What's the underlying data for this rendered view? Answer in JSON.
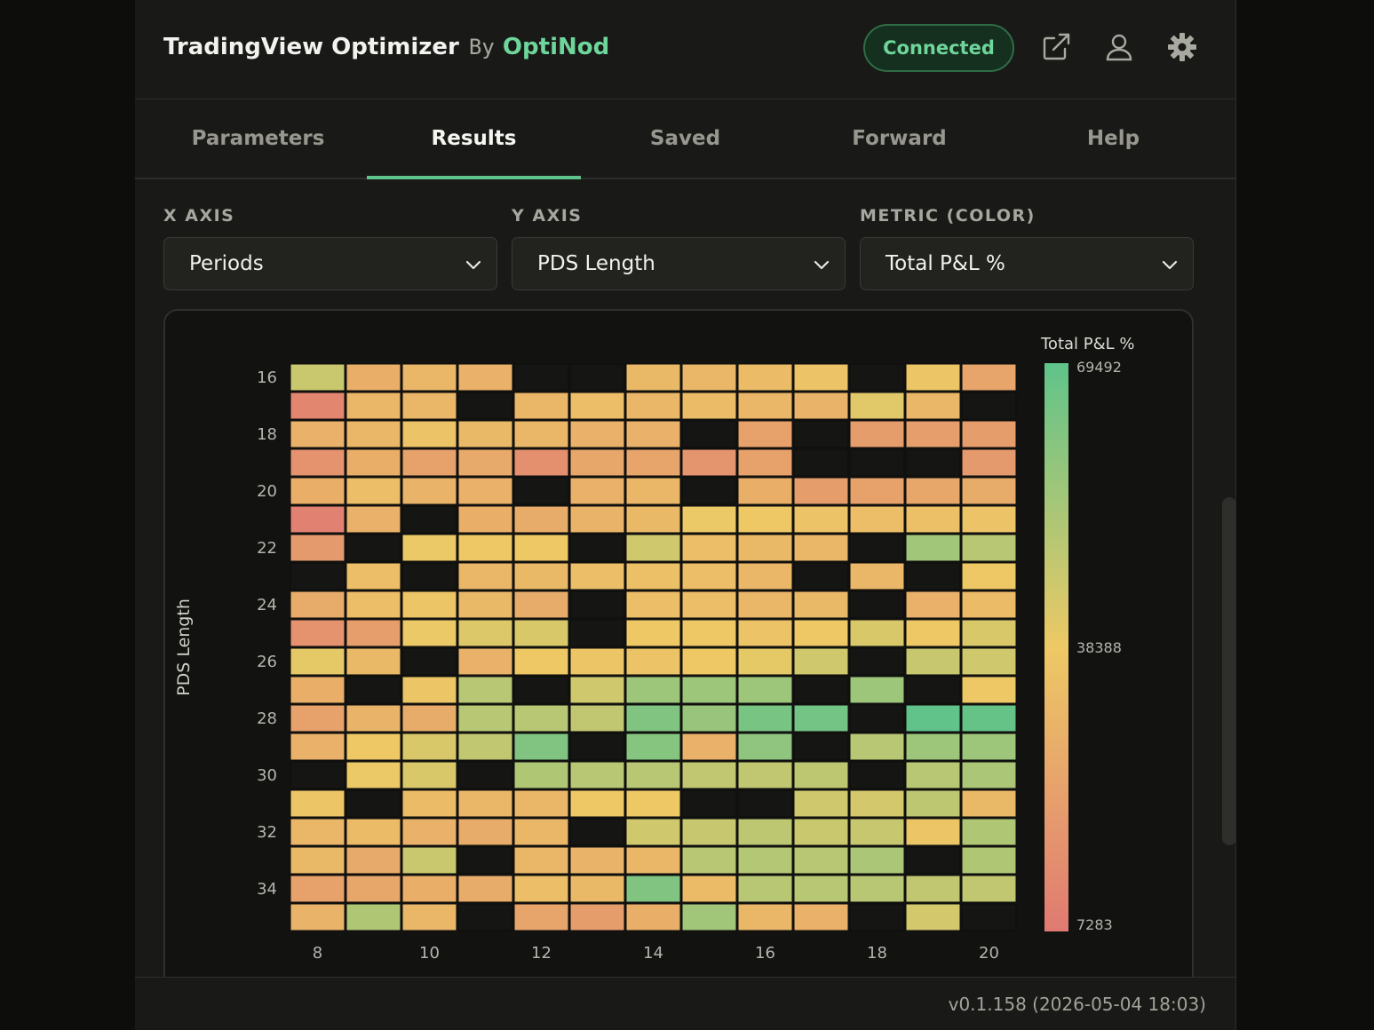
{
  "header": {
    "app_name": "TradingView Optimizer",
    "by_label": "By",
    "org_name": "OptiNod",
    "status": "Connected",
    "icons": [
      "external-link-icon",
      "user-icon",
      "gear-icon"
    ]
  },
  "tabs": [
    {
      "label": "Parameters",
      "active": false
    },
    {
      "label": "Results",
      "active": true
    },
    {
      "label": "Saved",
      "active": false
    },
    {
      "label": "Forward",
      "active": false
    },
    {
      "label": "Help",
      "active": false
    }
  ],
  "controls": {
    "x_axis": {
      "label": "X AXIS",
      "value": "Periods"
    },
    "y_axis": {
      "label": "Y AXIS",
      "value": "PDS Length"
    },
    "metric": {
      "label": "METRIC (COLOR)",
      "value": "Total P&L %"
    }
  },
  "colors": {
    "accent": "#5fc48b",
    "scale_low": "#e07a72",
    "scale_mid": "#edc965",
    "scale_high": "#5fc38a",
    "empty_cell": "#151514"
  },
  "chart_data": {
    "type": "heatmap",
    "ylabel": "PDS Length",
    "xlabel": "",
    "x": [
      8,
      9,
      10,
      11,
      12,
      13,
      14,
      15,
      16,
      17,
      18,
      19,
      20
    ],
    "y": [
      16,
      17,
      18,
      19,
      20,
      21,
      22,
      23,
      24,
      25,
      26,
      27,
      28,
      29,
      30,
      31,
      32,
      33,
      34,
      35
    ],
    "x_tick_labels": [
      "8",
      "10",
      "12",
      "14",
      "16",
      "18",
      "20"
    ],
    "y_tick_labels": [
      "16",
      "18",
      "20",
      "22",
      "24",
      "26",
      "28",
      "30",
      "32",
      "34"
    ],
    "colorbar": {
      "title": "Total P&L %",
      "min": 7283,
      "mid": 38388,
      "max": 69492,
      "labels": [
        "69492",
        "38388",
        "7283"
      ]
    },
    "values": [
      [
        46000,
        28000,
        31000,
        29000,
        null,
        null,
        32000,
        31000,
        33000,
        36000,
        null,
        37000,
        24000
      ],
      [
        12000,
        31000,
        31000,
        null,
        31000,
        34000,
        31000,
        33000,
        31000,
        30000,
        41000,
        31000,
        null
      ],
      [
        29000,
        31000,
        36000,
        32000,
        31000,
        29000,
        29000,
        null,
        23000,
        null,
        21000,
        22000,
        21000
      ],
      [
        17000,
        28000,
        23000,
        26000,
        16000,
        25000,
        24000,
        18000,
        23000,
        null,
        null,
        null,
        20000
      ],
      [
        28000,
        34000,
        30000,
        29000,
        null,
        29000,
        31000,
        null,
        28000,
        21000,
        23000,
        25000,
        27000
      ],
      [
        10000,
        29000,
        null,
        28000,
        27000,
        30000,
        32000,
        39000,
        38000,
        36000,
        34000,
        35000,
        36000
      ],
      [
        20000,
        null,
        39000,
        38000,
        38000,
        null,
        45000,
        34000,
        32000,
        31000,
        null,
        55000,
        50000
      ],
      [
        null,
        34000,
        null,
        31000,
        32000,
        34000,
        35000,
        34000,
        31000,
        null,
        31000,
        null,
        38000
      ],
      [
        27000,
        34000,
        37000,
        32000,
        27000,
        null,
        34000,
        34000,
        31000,
        32000,
        null,
        29000,
        33000
      ],
      [
        17000,
        22000,
        39000,
        42000,
        43000,
        null,
        38000,
        38000,
        36000,
        38000,
        43000,
        38000,
        43000
      ],
      [
        40000,
        32000,
        null,
        29000,
        38000,
        37000,
        36000,
        38000,
        40000,
        45000,
        null,
        47000,
        45000
      ],
      [
        28000,
        null,
        37000,
        50000,
        null,
        45000,
        56000,
        56000,
        56000,
        null,
        56000,
        null,
        38000
      ],
      [
        23000,
        30000,
        27000,
        50000,
        50000,
        48000,
        62000,
        57000,
        64000,
        65000,
        null,
        69000,
        68000
      ],
      [
        29000,
        38000,
        43000,
        48000,
        62000,
        null,
        61000,
        29000,
        59000,
        null,
        50000,
        56000,
        56000
      ],
      [
        null,
        39000,
        43000,
        null,
        52000,
        50000,
        50000,
        48000,
        48000,
        49000,
        null,
        50000,
        53000
      ],
      [
        37000,
        null,
        33000,
        31000,
        31000,
        38000,
        38000,
        null,
        null,
        45000,
        44000,
        49000,
        32000
      ],
      [
        31000,
        33000,
        29000,
        27000,
        31000,
        null,
        45000,
        47000,
        49000,
        46000,
        47000,
        37000,
        52000
      ],
      [
        32000,
        26000,
        46000,
        null,
        31000,
        30000,
        31000,
        50000,
        51000,
        50000,
        53000,
        null,
        52000
      ],
      [
        23000,
        25000,
        28000,
        27000,
        34000,
        32000,
        62000,
        33000,
        50000,
        50000,
        50000,
        48000,
        48000
      ],
      [
        30000,
        52000,
        31000,
        null,
        24000,
        21000,
        28000,
        55000,
        31000,
        29000,
        null,
        44000,
        null
      ]
    ]
  },
  "footer": {
    "version": "v0.1.158 (2026-05-04 18:03)"
  }
}
